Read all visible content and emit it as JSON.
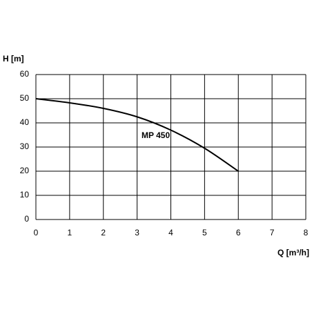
{
  "chart_data": {
    "type": "line",
    "x_label": "Q [m³/h]",
    "y_label": "H [m]",
    "x": [
      0,
      1,
      2,
      3,
      4,
      5,
      6
    ],
    "series": [
      {
        "name": "MP 450",
        "color": "#000000",
        "values": [
          50,
          48.3,
          46,
          42.5,
          37,
          29.5,
          20
        ]
      }
    ],
    "xlim": [
      0,
      8
    ],
    "ylim": [
      0,
      60
    ],
    "xticks": [
      0,
      1,
      2,
      3,
      4,
      5,
      6,
      7,
      8
    ],
    "yticks": [
      0,
      10,
      20,
      30,
      40,
      50,
      60
    ],
    "grid": true
  }
}
